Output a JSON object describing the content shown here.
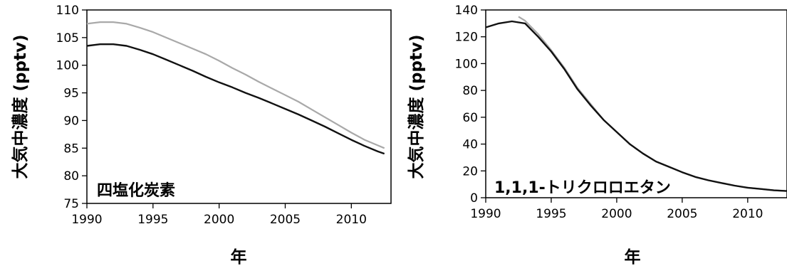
{
  "chart_data": [
    {
      "type": "line",
      "annotation": "四塩化炭素",
      "xlabel": "年",
      "ylabel": "大気中濃度 (pptv)",
      "xlim": [
        1990,
        2013
      ],
      "ylim": [
        75,
        110
      ],
      "xticks": [
        1990,
        1995,
        2000,
        2005,
        2010
      ],
      "yticks": [
        75,
        80,
        85,
        90,
        95,
        100,
        105,
        110
      ],
      "grid": false,
      "series": [
        {
          "color": "#a9a9a9",
          "x": [
            1990,
            1991,
            1992,
            1993,
            1994,
            1995,
            1996,
            1997,
            1998,
            1999,
            2000,
            2001,
            2002,
            2003,
            2004,
            2005,
            2006,
            2007,
            2008,
            2009,
            2010,
            2011,
            2012,
            2012.5
          ],
          "y": [
            107.5,
            107.8,
            107.8,
            107.5,
            106.8,
            106,
            105,
            104,
            103,
            102,
            100.8,
            99.5,
            98.3,
            97,
            95.8,
            94.6,
            93.4,
            92,
            90.6,
            89.2,
            87.8,
            86.5,
            85.5,
            85
          ]
        },
        {
          "color": "#111111",
          "x": [
            1990,
            1991,
            1992,
            1993,
            1994,
            1995,
            1996,
            1997,
            1998,
            1999,
            2000,
            2001,
            2002,
            2003,
            2004,
            2005,
            2006,
            2007,
            2008,
            2009,
            2010,
            2011,
            2012,
            2012.5
          ],
          "y": [
            103.5,
            103.8,
            103.8,
            103.5,
            102.8,
            102,
            101,
            100,
            99,
            97.9,
            96.9,
            96,
            95,
            94.1,
            93.1,
            92.1,
            91.1,
            90,
            88.9,
            87.7,
            86.5,
            85.4,
            84.4,
            84
          ]
        }
      ]
    },
    {
      "type": "line",
      "annotation": "1,1,1-トリクロロエタン",
      "xlabel": "年",
      "ylabel": "大気中濃度 (pptv)",
      "xlim": [
        1990,
        2013
      ],
      "ylim": [
        0,
        140
      ],
      "xticks": [
        1990,
        1995,
        2000,
        2005,
        2010
      ],
      "yticks": [
        0,
        20,
        40,
        60,
        80,
        100,
        120,
        140
      ],
      "grid": false,
      "series": [
        {
          "color": "#a9a9a9",
          "x": [
            1992.5,
            1993,
            1994,
            1995,
            1996,
            1997,
            1998,
            1999,
            2000,
            2001,
            2002,
            2003,
            2004,
            2005,
            2006,
            2007,
            2008,
            2009,
            2010,
            2011,
            2012,
            2013
          ],
          "y": [
            135,
            132,
            122,
            110,
            97,
            82,
            70,
            58,
            49,
            40,
            33,
            27,
            23,
            19,
            15.5,
            13,
            11,
            9,
            7.5,
            6.5,
            5.5,
            5
          ]
        },
        {
          "color": "#111111",
          "x": [
            1990,
            1991,
            1992,
            1993,
            1994,
            1995,
            1996,
            1997,
            1998,
            1999,
            2000,
            2001,
            2002,
            2003,
            2004,
            2005,
            2006,
            2007,
            2008,
            2009,
            2010,
            2011,
            2012,
            2013
          ],
          "y": [
            127,
            130,
            131.5,
            130,
            120,
            109,
            96,
            81,
            69,
            58,
            49,
            40,
            33,
            27,
            23,
            19,
            15.5,
            13,
            11,
            9,
            7.5,
            6.5,
            5.5,
            5
          ]
        }
      ]
    }
  ]
}
